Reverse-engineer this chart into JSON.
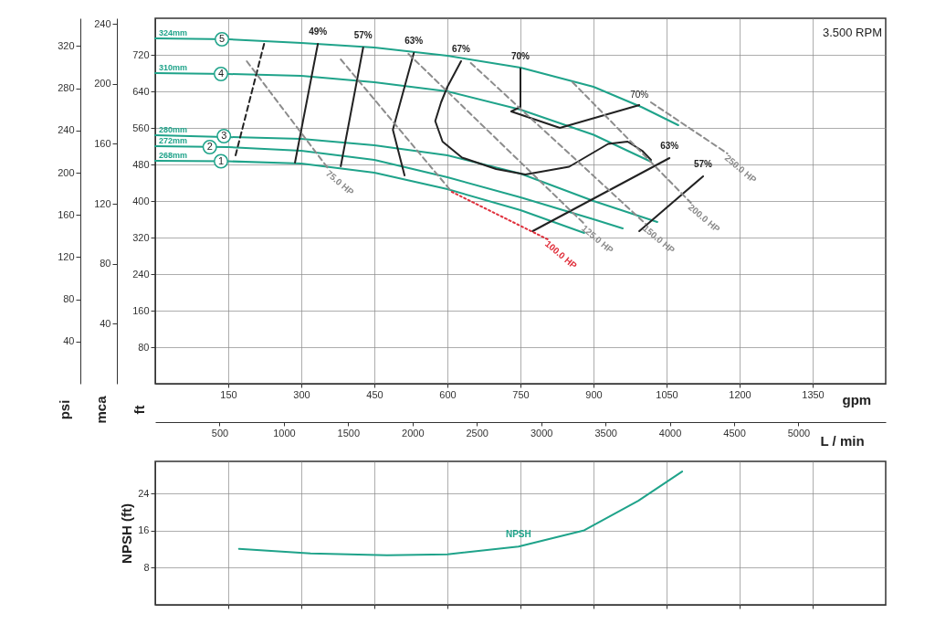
{
  "chart_data": [
    {
      "type": "line",
      "xlabel": "gpm",
      "ylabel": "ft",
      "y2label": "mca",
      "y3label": "psi",
      "x2label": "L / min",
      "xlim": [
        0,
        1500
      ],
      "xticks": [
        150,
        300,
        450,
        600,
        750,
        900,
        1050,
        1200,
        1350
      ],
      "ylim": [
        0,
        800
      ],
      "yticks": [
        80,
        160,
        240,
        320,
        400,
        480,
        560,
        640,
        720
      ],
      "y2lim": [
        0,
        243.8
      ],
      "y2ticks": [
        40,
        80,
        120,
        160,
        200,
        240
      ],
      "y3lim": [
        0,
        346.4
      ],
      "y3ticks": [
        40,
        80,
        120,
        160,
        200,
        240,
        280,
        320
      ],
      "x2lim": [
        0,
        5678
      ],
      "x2ticks": [
        500,
        1000,
        1500,
        2000,
        2500,
        3000,
        3500,
        4000,
        4500,
        5000
      ],
      "grid": true,
      "annotations": [
        "3.500 RPM",
        {
          "text": "70%",
          "x": 994,
          "y": 610
        },
        {
          "text": "5",
          "x": 137,
          "y": 754
        },
        {
          "text": "4",
          "x": 135,
          "y": 678
        },
        {
          "text": "3",
          "x": 141,
          "y": 542
        },
        {
          "text": "2",
          "x": 112,
          "y": 518
        },
        {
          "text": "1",
          "x": 135,
          "y": 487
        }
      ],
      "series": [
        {
          "name": "324mm",
          "color": "#1fa38a",
          "x": [
            0,
            150,
            300,
            450,
            600,
            750,
            900,
            1000,
            1074
          ],
          "values": [
            756,
            754,
            746,
            736,
            718,
            692,
            650,
            605,
            566
          ]
        },
        {
          "name": "310mm",
          "color": "#1fa38a",
          "x": [
            0,
            150,
            300,
            450,
            600,
            750,
            900,
            1018
          ],
          "values": [
            680,
            678,
            674,
            660,
            640,
            600,
            545,
            486
          ]
        },
        {
          "name": "280mm",
          "color": "#1fa38a",
          "x": [
            0,
            300,
            450,
            600,
            750,
            900,
            1031
          ],
          "values": [
            544,
            536,
            522,
            500,
            460,
            400,
            354
          ]
        },
        {
          "name": "272mm",
          "color": "#1fa38a",
          "x": [
            0,
            150,
            300,
            450,
            600,
            750,
            900,
            960
          ],
          "values": [
            520,
            518,
            510,
            490,
            452,
            408,
            360,
            340
          ]
        },
        {
          "name": "268mm",
          "color": "#1fa38a",
          "x": [
            0,
            150,
            300,
            450,
            600,
            750,
            881
          ],
          "values": [
            488,
            487,
            482,
            462,
            426,
            380,
            330
          ]
        },
        {
          "color": "#222222",
          "line_style": "dashed",
          "x": [
            165,
            225
          ],
          "values": [
            500,
            750
          ]
        },
        {
          "name": "75.0 HP",
          "color": "#8c8c8c",
          "line_style": "dashed",
          "x": [
            188,
            356
          ],
          "values": [
            706,
            470
          ]
        },
        {
          "color": "#8c8c8c",
          "line_style": "dashed",
          "x": [
            381,
            609
          ],
          "values": [
            710,
            420
          ]
        },
        {
          "name": "100.0 HP",
          "color": "#e0303c",
          "line_style": "dotted",
          "x": [
            609,
            806
          ],
          "values": [
            420,
            316
          ]
        },
        {
          "name": "125.0 HP",
          "color": "#8c8c8c",
          "line_style": "dashed",
          "x": [
            520,
            881
          ],
          "values": [
            722,
            350
          ]
        },
        {
          "name": "150.0 HP",
          "color": "#8c8c8c",
          "line_style": "dashed",
          "x": [
            648,
            1007
          ],
          "values": [
            702,
            350
          ]
        },
        {
          "name": "200.0 HP",
          "color": "#8c8c8c",
          "line_style": "dashed",
          "x": [
            857,
            1100
          ],
          "values": [
            660,
            396
          ]
        },
        {
          "name": "250.0 HP",
          "color": "#8c8c8c",
          "line_style": "dashed",
          "x": [
            1018,
            1175
          ],
          "values": [
            616,
            504
          ]
        },
        {
          "name": "49%",
          "color": "#222222",
          "x": [
            334,
            287
          ],
          "values": [
            744,
            484
          ]
        },
        {
          "name": "57%",
          "color": "#222222",
          "x": [
            427,
            381
          ],
          "values": [
            736,
            476
          ]
        },
        {
          "name": "63%",
          "color": "#222222",
          "x": [
            531,
            488,
            512
          ],
          "values": [
            724,
            556,
            456
          ]
        },
        {
          "name": "67%",
          "color": "#222222",
          "x": [
            628,
            600,
            587,
            575,
            590,
            630,
            700,
            760,
            850,
            930,
            970,
            1000,
            1018
          ],
          "values": [
            706,
            650,
            616,
            575,
            530,
            495,
            470,
            458,
            475,
            525,
            530,
            510,
            490
          ]
        },
        {
          "name": "70%",
          "color": "#222222",
          "x": [
            750,
            750,
            731,
            831,
            994
          ],
          "values": [
            690,
            606,
            596,
            560,
            610
          ]
        },
        {
          "name": "63%",
          "color": "#222222",
          "x": [
            775,
            1056
          ],
          "values": [
            334,
            494
          ]
        },
        {
          "name": "57%",
          "color": "#222222",
          "x": [
            994,
            1125
          ],
          "values": [
            334,
            454
          ]
        }
      ]
    },
    {
      "type": "line",
      "ylabel": "NPSH (ft)",
      "xlim": [
        0,
        1500
      ],
      "xticks": [
        150,
        300,
        450,
        600,
        750,
        900,
        1050,
        1200,
        1350
      ],
      "ylim": [
        0,
        31
      ],
      "yticks": [
        8,
        16,
        24
      ],
      "tick_labels": "y",
      "grid": true,
      "series": [
        {
          "name": "NPSH",
          "color": "#1fa38a",
          "x": [
            172,
            319,
            476,
            600,
            746,
            881,
            992,
            1082
          ],
          "values": [
            12.1,
            11.1,
            10.7,
            10.9,
            12.6,
            16.1,
            22.5,
            28.8
          ]
        }
      ]
    }
  ]
}
